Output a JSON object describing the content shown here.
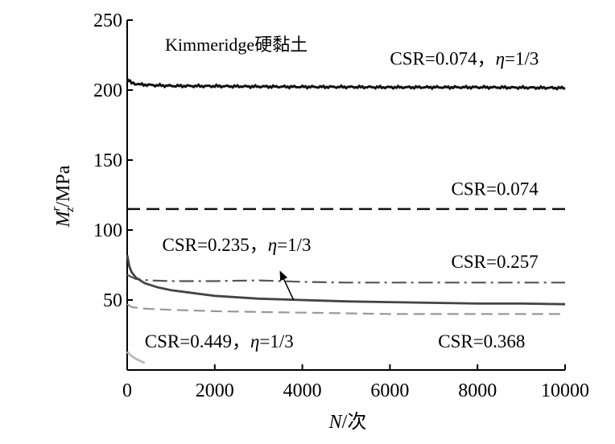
{
  "chart_data": {
    "type": "line",
    "title": "Kimmeridge硬黏土",
    "xlabel": {
      "var": "N",
      "sep": "/",
      "unit": "次"
    },
    "ylabel": {
      "var": "M",
      "sup": "r",
      "sub": "z",
      "unit": "/MPa"
    },
    "xlim": [
      0,
      10000
    ],
    "ylim": [
      0,
      250
    ],
    "xticks": [
      0,
      2000,
      4000,
      6000,
      8000,
      10000
    ],
    "yticks": [
      50,
      100,
      150,
      200,
      250
    ],
    "grid": false,
    "legend": "none",
    "series": [
      {
        "key": "s1",
        "style": "solid-thick",
        "color": "#111111",
        "x": [
          0,
          100,
          300,
          600,
          1000,
          2000,
          3000,
          4000,
          5000,
          6000,
          7000,
          8000,
          9000,
          10000
        ],
        "y": [
          208,
          205,
          204,
          203.5,
          203,
          202.8,
          202.5,
          202.3,
          202.2,
          202,
          202,
          202,
          201.8,
          201.5
        ]
      },
      {
        "key": "s2",
        "style": "dashed-black",
        "color": "#111111",
        "x": [
          0,
          10000
        ],
        "y": [
          115,
          115
        ]
      },
      {
        "key": "s3",
        "style": "dashdot-gray",
        "color": "#555555",
        "x": [
          0,
          200,
          500,
          1000,
          2000,
          3000,
          4000,
          5000,
          6000,
          7000,
          8000,
          9000,
          10000
        ],
        "y": [
          68,
          65,
          64,
          63.5,
          63.5,
          64,
          63,
          62.5,
          62.5,
          62.5,
          62.5,
          62.5,
          62.5
        ]
      },
      {
        "key": "s4",
        "style": "solid-gray",
        "color": "#444444",
        "x": [
          0,
          50,
          100,
          200,
          400,
          700,
          1000,
          1500,
          2000,
          3000,
          4000,
          5000,
          6000,
          7000,
          8000,
          9000,
          10000
        ],
        "y": [
          82,
          74,
          70,
          66,
          62,
          59,
          57,
          55,
          53,
          51,
          50,
          49,
          48.5,
          48,
          47.5,
          47.5,
          47
        ]
      },
      {
        "key": "s5",
        "style": "dashed-lightgray",
        "color": "#999999",
        "x": [
          0,
          100,
          300,
          600,
          1000,
          2000,
          3000,
          4000,
          5000,
          6000,
          7000,
          8000,
          9000,
          10000
        ],
        "y": [
          47,
          45,
          44,
          43.5,
          43,
          42,
          41.5,
          41,
          40.5,
          40,
          40,
          40,
          40,
          40
        ]
      },
      {
        "key": "s6",
        "style": "solid-lightgray",
        "color": "#bbbbbb",
        "x": [
          0,
          100,
          200,
          300,
          400
        ],
        "y": [
          13,
          10,
          8,
          6.5,
          5
        ]
      }
    ],
    "annotations": [
      {
        "text": "CSR=0.074，",
        "eta": "η",
        "rest": "=1/3",
        "x": 6000,
        "y": 218
      },
      {
        "text": "CSR=0.074",
        "x": 7400,
        "y": 125
      },
      {
        "text": "CSR=0.235，",
        "eta": "η",
        "rest": "=1/3",
        "x": 800,
        "y": 85
      },
      {
        "text": "CSR=0.257",
        "x": 7400,
        "y": 73
      },
      {
        "text": "CSR=0.449，",
        "eta": "η",
        "rest": "=1/3",
        "x": 400,
        "y": 16
      },
      {
        "text": "CSR=0.368",
        "x": 7100,
        "y": 16
      }
    ],
    "arrow": {
      "from": [
        3800,
        50
      ],
      "to": [
        3500,
        70
      ]
    }
  }
}
